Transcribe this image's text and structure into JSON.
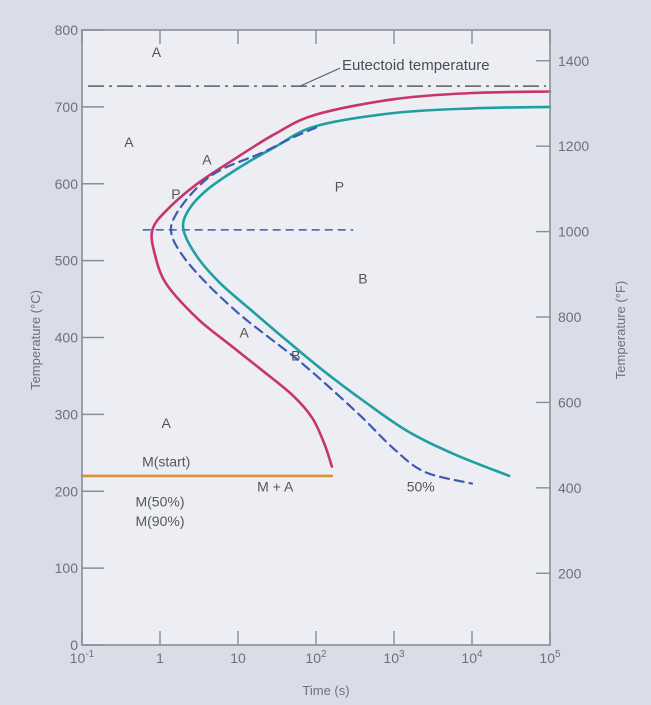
{
  "chart_data": {
    "type": "line",
    "title": "",
    "xlabel": "Time (s)",
    "ylabel_left": "Temperature (°C)",
    "ylabel_right": "Temperature (°F)",
    "x_scale": "log",
    "xlim": [
      0.1,
      100000
    ],
    "ylim": [
      0,
      800
    ],
    "x_tick_labels": [
      {
        "x": 0.1,
        "label": "10",
        "sup": "-1"
      },
      {
        "x": 1,
        "label": "1",
        "sup": ""
      },
      {
        "x": 10,
        "label": "10",
        "sup": ""
      },
      {
        "x": 100,
        "label": "10",
        "sup": "2"
      },
      {
        "x": 1000,
        "label": "10",
        "sup": "3"
      },
      {
        "x": 10000,
        "label": "10",
        "sup": "4"
      },
      {
        "x": 100000,
        "label": "10",
        "sup": "5"
      }
    ],
    "y_ticks_left": [
      0,
      100,
      200,
      300,
      400,
      500,
      600,
      700,
      800
    ],
    "y_ticks_right_f": [
      200,
      400,
      600,
      800,
      1000,
      1200,
      1400
    ],
    "eutectoid": {
      "label": "Eutectoid temperature",
      "y": 727,
      "color": "#5a5c66"
    },
    "series": [
      {
        "name": "",
        "color": "#c8356a",
        "style": "solid",
        "points": [
          [
            100000,
            720
          ],
          [
            10000,
            718
          ],
          [
            1000,
            710
          ],
          [
            100,
            690
          ],
          [
            30,
            665
          ],
          [
            10,
            635
          ],
          [
            3,
            600
          ],
          [
            1.2,
            565
          ],
          [
            0.8,
            540
          ],
          [
            0.85,
            510
          ],
          [
            1.2,
            470
          ],
          [
            3,
            425
          ],
          [
            8,
            390
          ],
          [
            20,
            358
          ],
          [
            50,
            325
          ],
          [
            90,
            295
          ],
          [
            130,
            260
          ],
          [
            160,
            232
          ]
        ]
      },
      {
        "name": "",
        "color": "#1e9fa0",
        "style": "solid",
        "points": [
          [
            100000,
            700
          ],
          [
            10000,
            698
          ],
          [
            1000,
            692
          ],
          [
            100,
            675
          ],
          [
            30,
            648
          ],
          [
            10,
            620
          ],
          [
            4,
            592
          ],
          [
            2.3,
            565
          ],
          [
            2,
            540
          ],
          [
            3,
            505
          ],
          [
            6,
            470
          ],
          [
            15,
            435
          ],
          [
            40,
            398
          ],
          [
            120,
            358
          ],
          [
            400,
            318
          ],
          [
            1500,
            278
          ],
          [
            6000,
            248
          ],
          [
            30000,
            220
          ]
        ]
      },
      {
        "name": "",
        "color": "#3f5ab0",
        "style": "dashed",
        "label": "50%",
        "points": [
          [
            100,
            673
          ],
          [
            50,
            660
          ],
          [
            20,
            640
          ],
          [
            6,
            618
          ],
          [
            3,
            595
          ],
          [
            1.6,
            560
          ],
          [
            1.4,
            535
          ],
          [
            2,
            505
          ],
          [
            4,
            470
          ],
          [
            10,
            432
          ],
          [
            25,
            400
          ],
          [
            60,
            370
          ],
          [
            150,
            335
          ],
          [
            400,
            295
          ],
          [
            1000,
            255
          ],
          [
            2500,
            225
          ],
          [
            10000,
            210
          ]
        ]
      },
      {
        "name": "M(start)",
        "color": "#d9903a",
        "style": "solid",
        "points": [
          [
            0.1,
            220
          ],
          [
            160,
            220
          ]
        ]
      }
    ],
    "reference_line": {
      "y": 540,
      "x_from": 0.6,
      "x_to": 300,
      "style": "dashed",
      "color": "#3f5ab0"
    },
    "annotations": [
      {
        "text": "A",
        "x": 0.9,
        "y": 765
      },
      {
        "text": "A",
        "x": 0.4,
        "y": 648
      },
      {
        "text": "A",
        "x": 1.2,
        "y": 282
      },
      {
        "text": "P",
        "x": 200,
        "y": 590
      },
      {
        "text": "B",
        "x": 400,
        "y": 470
      },
      {
        "text": "M + A",
        "x": 30,
        "y": 200
      },
      {
        "text": "M(50%)",
        "x": 1,
        "y": 180
      },
      {
        "text": "M(90%)",
        "x": 1,
        "y": 155
      },
      {
        "text": "P",
        "x": 1.6,
        "y": 580
      },
      {
        "text": "A",
        "x": 4,
        "y": 625
      },
      {
        "text": "A",
        "x": 12,
        "y": 400
      },
      {
        "text": "B",
        "x": 55,
        "y": 370
      },
      {
        "text": "M(start)",
        "x": 1.2,
        "y": 232
      },
      {
        "text": "50%",
        "x": 2200,
        "y": 200
      }
    ]
  }
}
